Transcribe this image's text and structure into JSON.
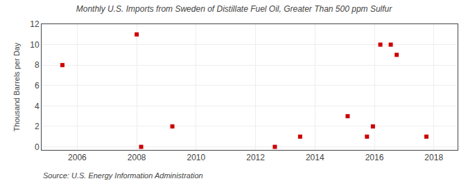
{
  "chart_data": {
    "type": "scatter",
    "title": "Monthly U.S. Imports from Sweden of Distillate Fuel Oil, Greater Than 500 ppm Sulfur",
    "ylabel": "Thousand Barrels per Day",
    "annotations": [
      "Source: U.S. Energy Information Administration"
    ],
    "x": [
      2005.5,
      2008.0,
      2008.15,
      2009.2,
      2012.65,
      2013.5,
      2015.1,
      2015.75,
      2015.95,
      2016.2,
      2016.55,
      2016.75,
      2017.75
    ],
    "values": [
      8,
      11,
      0,
      2,
      0,
      1,
      3,
      1,
      2,
      10,
      10,
      9,
      1
    ],
    "color": "#cc0000",
    "marker": "square",
    "xlim": [
      2004.8,
      2018.8
    ],
    "ylim": [
      -0.3,
      12
    ],
    "xticks": [
      2006,
      2008,
      2010,
      2012,
      2014,
      2016,
      2018
    ],
    "yticks": [
      0,
      2,
      4,
      6,
      8,
      10,
      12
    ],
    "grid": true
  }
}
